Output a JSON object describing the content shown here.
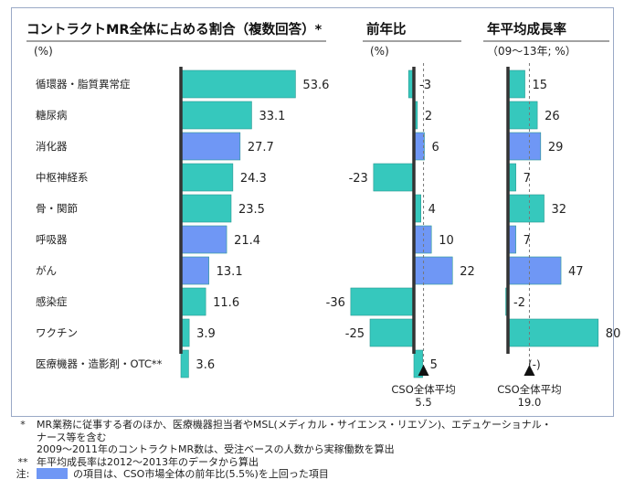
{
  "chart_data": [
    {
      "type": "bar",
      "orientation": "horizontal",
      "title": "コントラクトMR全体に占める割合（複数回答）*",
      "unit": "(%)",
      "categories": [
        "循環器・脂質異常症",
        "糖尿病",
        "消化器",
        "中枢神経系",
        "骨・関節",
        "呼吸器",
        "がん",
        "感染症",
        "ワクチン",
        "医療機器・造影剤・OTC**"
      ],
      "values": [
        53.6,
        33.1,
        27.7,
        24.3,
        23.5,
        21.4,
        13.1,
        11.6,
        3.9,
        3.6
      ],
      "value_labels": [
        "53.6",
        "33.1",
        "27.7",
        "24.3",
        "23.5",
        "21.4",
        "13.1",
        "11.6",
        "3.9",
        "3.6"
      ],
      "highlighted": [
        false,
        false,
        true,
        false,
        false,
        true,
        true,
        false,
        false,
        false
      ]
    },
    {
      "type": "bar",
      "orientation": "horizontal",
      "title": "前年比",
      "unit": "(%)",
      "categories": [
        "循環器・脂質異常症",
        "糖尿病",
        "消化器",
        "中枢神経系",
        "骨・関節",
        "呼吸器",
        "がん",
        "感染症",
        "ワクチン",
        "医療機器・造影剤・OTC**"
      ],
      "values": [
        -3,
        2,
        6,
        -23,
        4,
        10,
        22,
        -36,
        -25,
        5
      ],
      "value_labels": [
        "-3",
        "2",
        "6",
        "-23",
        "4",
        "10",
        "22",
        "-36",
        "-25",
        "5"
      ],
      "highlighted": [
        false,
        false,
        true,
        false,
        false,
        true,
        true,
        false,
        false,
        false
      ],
      "reference": {
        "label": "CSO全体平均",
        "value": 5.5,
        "value_label": "5.5"
      }
    },
    {
      "type": "bar",
      "orientation": "horizontal",
      "title": "年平均成長率",
      "unit": "（09～13年; %）",
      "categories": [
        "循環器・脂質異常症",
        "糖尿病",
        "消化器",
        "中枢神経系",
        "骨・関節",
        "呼吸器",
        "がん",
        "感染症",
        "ワクチン",
        "医療機器・造影剤・OTC**"
      ],
      "values": [
        15,
        26,
        29,
        7,
        32,
        7,
        47,
        -2,
        80,
        null
      ],
      "value_labels": [
        "15",
        "26",
        "29",
        "7",
        "32",
        "7",
        "47",
        "-2",
        "80",
        "(-)"
      ],
      "highlighted": [
        false,
        false,
        true,
        false,
        false,
        true,
        true,
        false,
        false,
        false
      ],
      "reference": {
        "label": "CSO全体平均",
        "value": 19.0,
        "value_label": "19.0"
      }
    }
  ],
  "colors": {
    "normal": "#36c8bd",
    "highlight": "#6f97f5",
    "axis": "#333333"
  },
  "notes": [
    {
      "mark": "*",
      "lines": [
        "MR業務に従事する者のほか、医療機器担当者やMSL(メディカル・サイエンス・リエゾン)、エデュケーショナル・",
        "ナース等を含む",
        "2009～2011年のコントラクトMR数は、受注ベースの人数から実稼働数を算出"
      ]
    },
    {
      "mark": "**",
      "lines": [
        "年平均成長率は2012～2013年のデータから算出"
      ]
    }
  ],
  "legend": {
    "mark": "注:",
    "text": "の項目は、CSO市場全体の前年比(5.5%)を上回った項目"
  }
}
